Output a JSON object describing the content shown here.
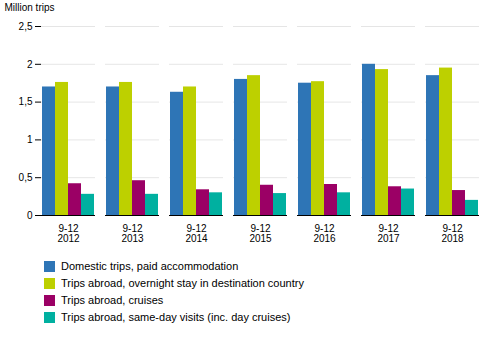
{
  "chart_data": {
    "type": "bar",
    "categories": [
      "9-12\n2012",
      "9-12\n2013",
      "9-12\n2014",
      "9-12\n2015",
      "9-12\n2016",
      "9-12\n2017",
      "9-12\n2018"
    ],
    "series": [
      {
        "name": "Domestic trips, paid accommodation",
        "color": "#2e75b6",
        "values": [
          1.7,
          1.7,
          1.63,
          1.8,
          1.75,
          2.0,
          1.85
        ]
      },
      {
        "name": "Trips abroad, overnight stay in destination country",
        "color": "#bdd000",
        "values": [
          1.76,
          1.76,
          1.7,
          1.85,
          1.77,
          1.93,
          1.95
        ]
      },
      {
        "name": "Trips abroad, cruises",
        "color": "#9b0065",
        "values": [
          0.42,
          0.46,
          0.34,
          0.4,
          0.41,
          0.38,
          0.33
        ]
      },
      {
        "name": "Trips abroad, same-day visits (inc. day cruises)",
        "color": "#00b0a0",
        "values": [
          0.28,
          0.28,
          0.3,
          0.29,
          0.3,
          0.35,
          0.2
        ]
      }
    ],
    "ylabel": "Million trips",
    "ylim": [
      0,
      2.5
    ],
    "yticks": [
      0,
      {
        "value": 0.5,
        "label": "0,5"
      },
      1,
      {
        "value": 1.5,
        "label": "1,5"
      },
      2,
      {
        "value": 2.5,
        "label": "2,5"
      }
    ],
    "grid": true,
    "legend": "bottom"
  }
}
